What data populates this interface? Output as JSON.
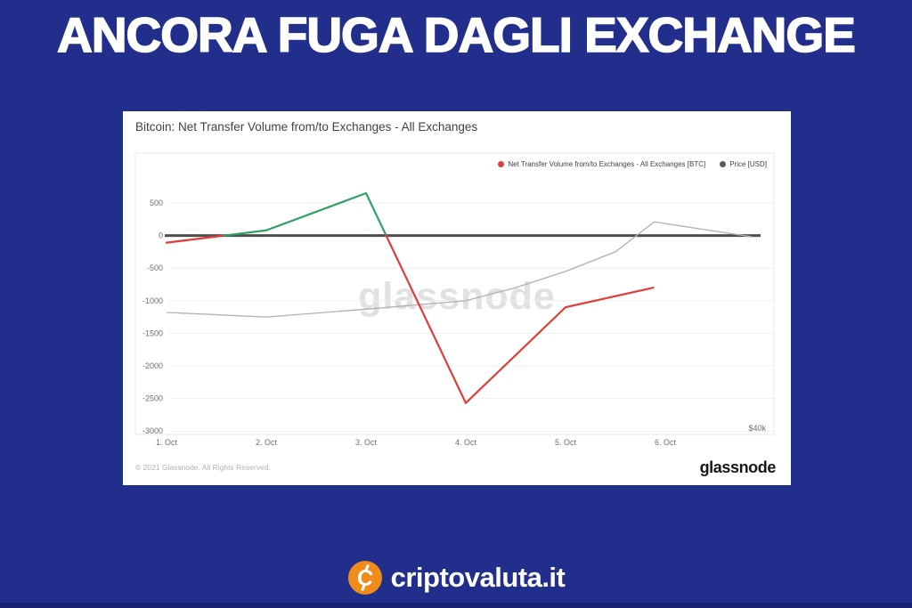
{
  "page": {
    "bg_color": "#212e8c",
    "bottom_bar_color": "#1a2373"
  },
  "banner": {
    "title": "ANCORA FUGA DAGLI EXCHANGE",
    "text_color": "#ffffff"
  },
  "chart_card": {
    "title": "Bitcoin: Net Transfer Volume from/to Exchanges - All Exchanges",
    "watermark": "glassnode",
    "footer_copyright": "© 2021 Glassnode. All Rights Reserved.",
    "footer_logo": "glassnode"
  },
  "chart_data": {
    "type": "line",
    "title": "Bitcoin: Net Transfer Volume from/to Exchanges - All Exchanges",
    "legend_position": "top-right",
    "grid": true,
    "legend": [
      {
        "label": "Net Transfer Volume from/to Exchanges - All Exchanges [BTC]",
        "color": "#dd3f38"
      },
      {
        "label": "Price [USD]",
        "color": "#5b5b5b"
      }
    ],
    "x_ticks": [
      "1. Oct",
      "2. Oct",
      "3. Oct",
      "4. Oct",
      "5. Oct",
      "6. Oct"
    ],
    "y_ticks": [
      500,
      0,
      -500,
      -1000,
      -1500,
      -2000,
      -2500,
      -3000
    ],
    "ylim": [
      -3050,
      1270
    ],
    "ylabel": "",
    "xlabel": "",
    "right_axis_label": "$40k",
    "zero_line": {
      "color": "#4d4d4d",
      "width": 3
    },
    "series": [
      {
        "name": "Net Transfer Volume from/to Exchanges - All Exchanges [BTC]",
        "unit": "BTC",
        "color_positive": "#2fa263",
        "color_negative": "#dd3f38",
        "points": [
          [
            1,
            -110
          ],
          [
            2,
            80
          ],
          [
            3,
            650
          ],
          [
            4,
            -2570
          ],
          [
            5,
            -1100
          ],
          [
            5.88,
            -800
          ]
        ]
      },
      {
        "name": "Price [USD]",
        "unit": "USD",
        "axis": "right",
        "color": "#b0b0b0",
        "points_btc_scale": [
          [
            1,
            -1180
          ],
          [
            2,
            -1250
          ],
          [
            3,
            -1130
          ],
          [
            4,
            -1000
          ],
          [
            4.5,
            -800
          ],
          [
            5,
            -550
          ],
          [
            5.5,
            -250
          ],
          [
            5.89,
            210
          ],
          [
            6.4,
            90
          ],
          [
            6.87,
            -20
          ]
        ]
      }
    ]
  },
  "branding": {
    "logo_text": "criptovaluta.it",
    "logo_icon": "crypto-c-coin-icon",
    "icon_color": "#f08c1a",
    "icon_letter": "C",
    "text_color": "#ffffff"
  }
}
